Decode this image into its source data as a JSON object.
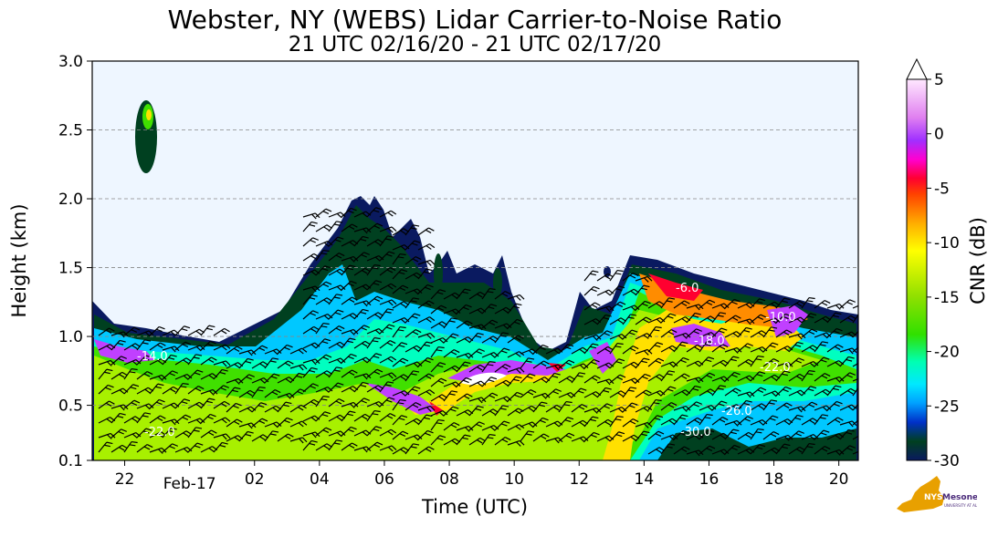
{
  "header": {
    "title": "Webster, NY (WEBS) Lidar Carrier-to-Noise Ratio",
    "subtitle": "21 UTC 02/16/20 - 21 UTC 02/17/20"
  },
  "chart_data": {
    "type": "heatmap",
    "title": "Webster, NY (WEBS) Lidar Carrier-to-Noise Ratio",
    "subtitle": "21 UTC 02/16/20 - 21 UTC 02/17/20",
    "xlabel": "Time (UTC)",
    "ylabel": "Height (km)",
    "x_ticks": [
      "22",
      "Feb-17",
      "02",
      "04",
      "06",
      "08",
      "10",
      "12",
      "14",
      "16",
      "18",
      "20"
    ],
    "y_ticks": [
      "0.1",
      "0.5",
      "1.0",
      "1.5",
      "2.0",
      "2.5",
      "3.0"
    ],
    "ylim": [
      0.1,
      3.0
    ],
    "xlim_hours": [
      21,
      44.6
    ],
    "grid": "horizontal dashed",
    "colorbar": {
      "label": "CNR (dB)",
      "range": [
        -30,
        5
      ],
      "ticks": [
        "5",
        "0",
        "-5",
        "-10",
        "-15",
        "-20",
        "-25",
        "-30"
      ],
      "extend": "max"
    },
    "contour_labels": [
      "-22.0",
      "-26.0",
      "-30.0",
      "-18.0",
      "-10.0",
      "-14.0",
      "-6.0"
    ],
    "overlay": "wind barbs",
    "logo_text": "NYS Mesonet"
  }
}
